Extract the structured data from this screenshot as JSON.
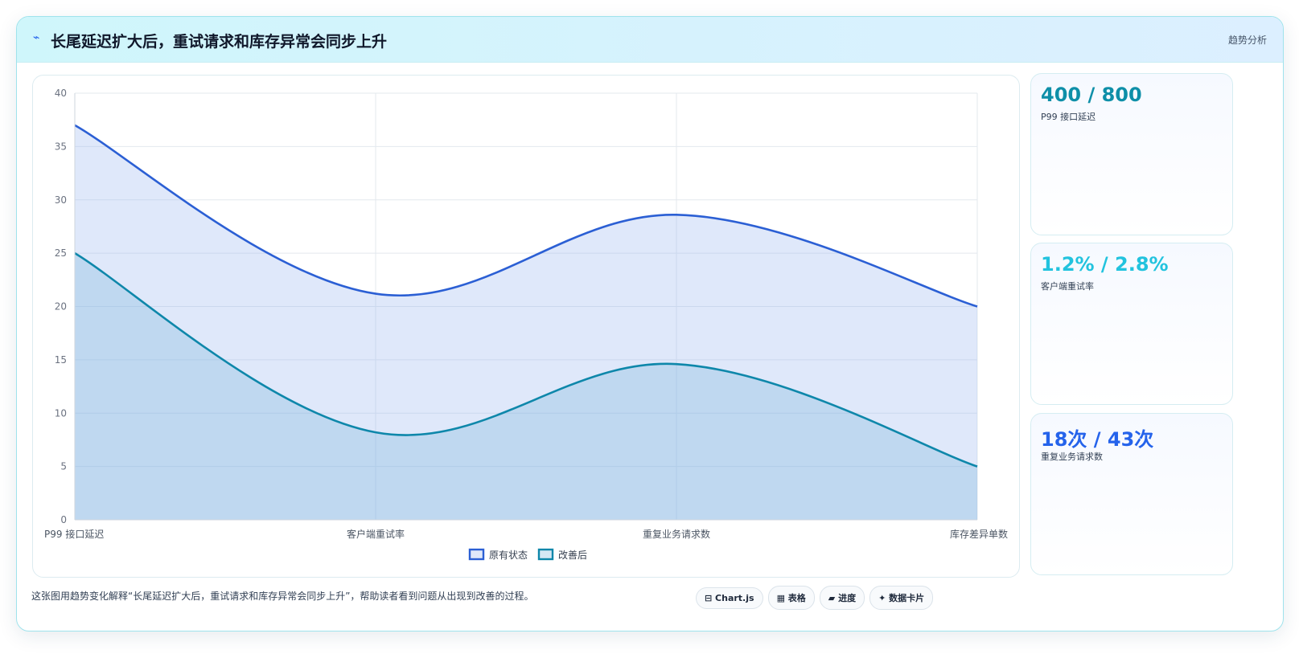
{
  "header": {
    "title": "长尾延迟扩大后，重试请求和库存异常会同步上升",
    "tag": "趋势分析"
  },
  "kpis": [
    {
      "value": "400 / 800",
      "label": "P99 接口延迟",
      "color": "#0e8fa8"
    },
    {
      "value": "1.2% / 2.8%",
      "label": "客户端重试率",
      "color": "#22c3de"
    },
    {
      "value": "18次 / 43次",
      "label": "重复业务请求数",
      "color": "#2563eb"
    }
  ],
  "footer": {
    "note": "这张图用趋势变化解释“长尾延迟扩大后，重试请求和库存异常会同步上升”，帮助读者看到问题从出现到改善的过程。",
    "pills": [
      "⊟ Chart.js",
      "▦ 表格",
      "▰ 进度",
      "✦ 数据卡片"
    ]
  },
  "chart_data": {
    "type": "area",
    "categories": [
      "P99 接口延迟",
      "客户端重试率",
      "重复业务请求数",
      "库存差异单数"
    ],
    "series": [
      {
        "name": "原有状态",
        "values": [
          37,
          21.2,
          28.6,
          20
        ],
        "color": "#2b5fd4",
        "fill": "rgba(150,178,240,0.30)"
      },
      {
        "name": "改善后",
        "values": [
          25,
          8.2,
          14.6,
          5
        ],
        "color": "#0e87aa",
        "fill": "rgba(120,180,220,0.30)"
      }
    ],
    "ylim": [
      0,
      40
    ],
    "yticks": [
      0,
      5,
      10,
      15,
      20,
      25,
      30,
      35,
      40
    ],
    "grid": true,
    "legend": "bottom"
  }
}
